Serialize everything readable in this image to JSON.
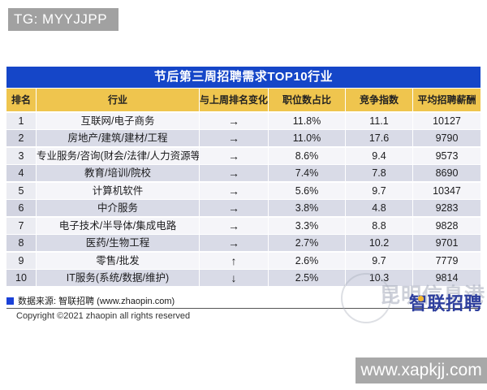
{
  "page": {
    "top_badge": "TG: MYYJJPP",
    "bottom_badge": "www.xapkjj.com"
  },
  "footer": {
    "source": "数据来源: 智联招聘 (www.zhaopin.com)",
    "copyright": "Copyright ©2021 zhaopin all rights reserved"
  },
  "watermark": {
    "site_text": "昆明信息港",
    "logo_text": "智联招聘"
  },
  "colors": {
    "title_bar_blue": "#1546c8",
    "header_yellow": "#efc54e",
    "row_alt_lavender": "#d9dbe7",
    "badge_gray": "#a1a1a1",
    "logo_blue": "#2e3f9e",
    "bullet_blue": "#1a41d8"
  },
  "chart_data": {
    "type": "table",
    "title": "节后第三周招聘需求TOP10行业",
    "columns": [
      "排名",
      "行业",
      "与上周排名变化",
      "职位数占比",
      "竞争指数",
      "平均招聘薪酬"
    ],
    "rows": [
      [
        "1",
        "互联网/电子商务",
        "→",
        "11.8%",
        "11.1",
        "10127"
      ],
      [
        "2",
        "房地产/建筑/建材/工程",
        "→",
        "11.0%",
        "17.6",
        "9790"
      ],
      [
        "3",
        "专业服务/咨询(财会/法律/人力资源等)",
        "→",
        "8.6%",
        "9.4",
        "9573"
      ],
      [
        "4",
        "教育/培训/院校",
        "→",
        "7.4%",
        "7.8",
        "8690"
      ],
      [
        "5",
        "计算机软件",
        "→",
        "5.6%",
        "9.7",
        "10347"
      ],
      [
        "6",
        "中介服务",
        "→",
        "3.8%",
        "4.8",
        "9283"
      ],
      [
        "7",
        "电子技术/半导体/集成电路",
        "→",
        "3.3%",
        "8.8",
        "9828"
      ],
      [
        "8",
        "医药/生物工程",
        "→",
        "2.7%",
        "10.2",
        "9701"
      ],
      [
        "9",
        "零售/批发",
        "↑",
        "2.6%",
        "9.7",
        "7779"
      ],
      [
        "10",
        "IT服务(系统/数据/维护)",
        "↓",
        "2.5%",
        "10.3",
        "9814"
      ]
    ]
  }
}
